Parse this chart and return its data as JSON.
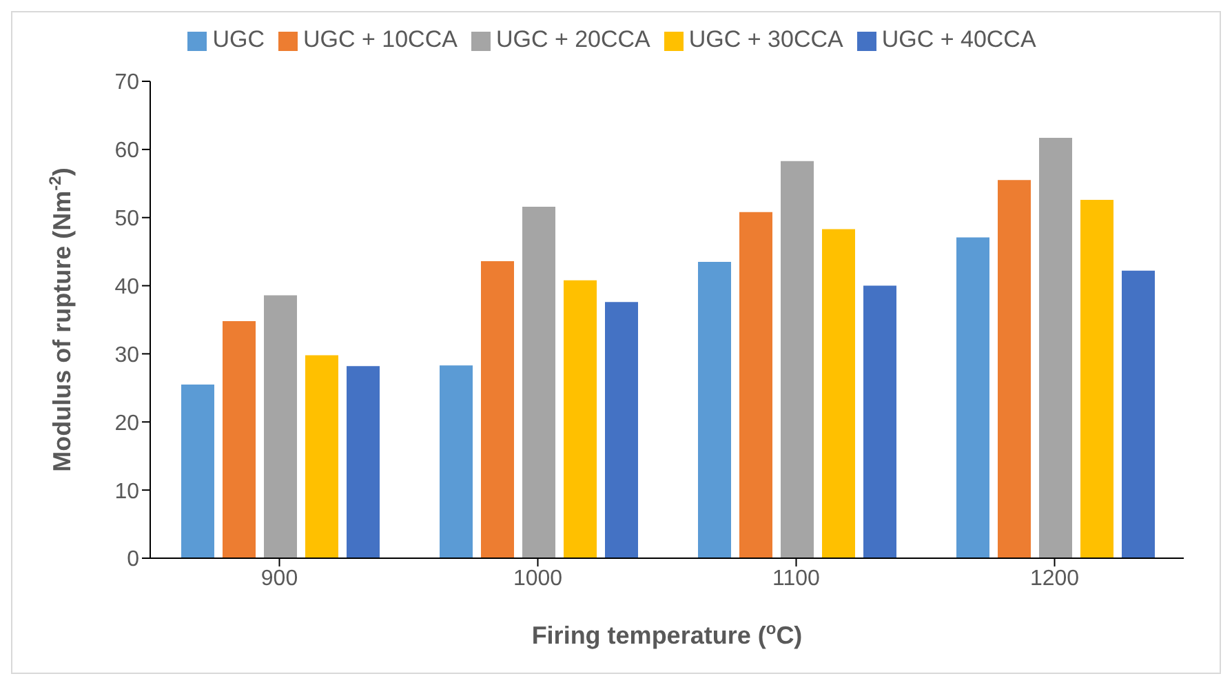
{
  "chart_data": {
    "type": "bar",
    "xlabel": "Firing temperature ($^{o}$C)",
    "ylabel": "Modulus of rupture (Nm$^{-2}$)",
    "categories": [
      "900",
      "1000",
      "1100",
      "1200"
    ],
    "series": [
      {
        "name": "UGC",
        "color": "#5b9bd5",
        "values": [
          25.5,
          28.3,
          43.5,
          47.1
        ]
      },
      {
        "name": "UGC + 10CCA",
        "color": "#ed7d31",
        "values": [
          34.8,
          43.6,
          50.8,
          55.5
        ]
      },
      {
        "name": "UGC + 20CCA",
        "color": "#a5a5a5",
        "values": [
          38.6,
          51.6,
          58.3,
          61.7
        ]
      },
      {
        "name": "UGC + 30CCA",
        "color": "#ffc000",
        "values": [
          29.8,
          40.8,
          48.3,
          52.6
        ]
      },
      {
        "name": "UGC + 40CCA",
        "color": "#4472c4",
        "values": [
          28.2,
          37.6,
          40.0,
          42.2
        ]
      }
    ],
    "ylim": [
      0,
      70
    ],
    "yticks": [
      0,
      10,
      20,
      30,
      40,
      50,
      60,
      70
    ],
    "grid": false,
    "legend": "top"
  }
}
